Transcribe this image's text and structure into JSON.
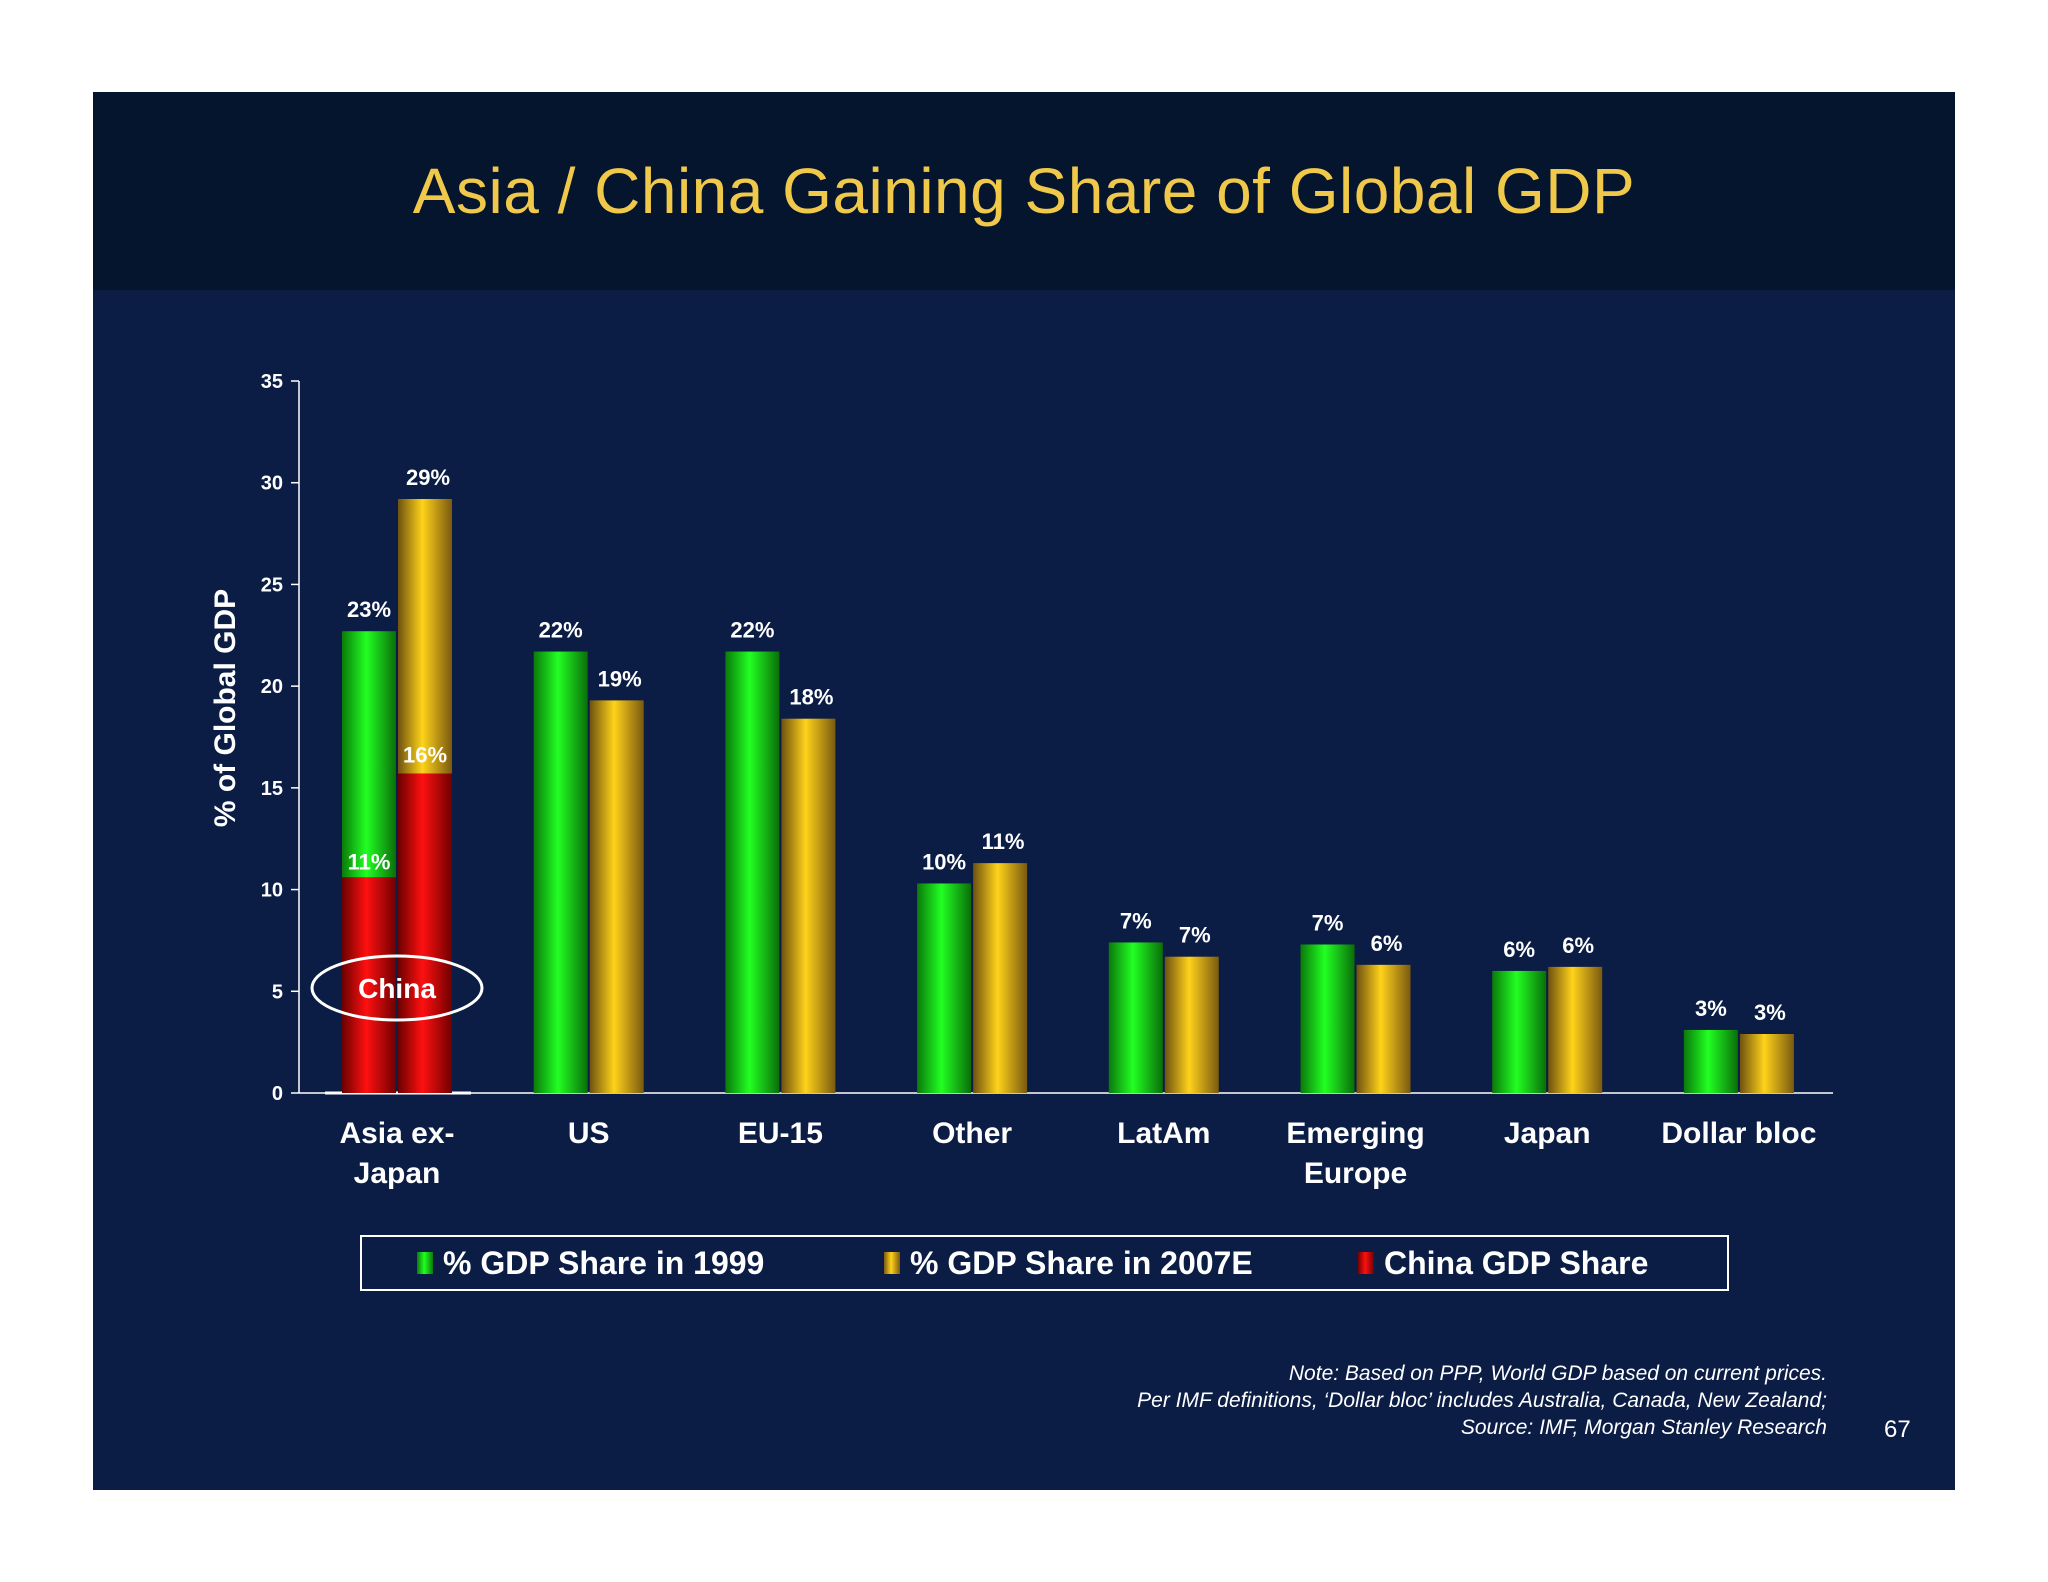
{
  "slide": {
    "title": "Asia / China Gaining Share of Global GDP",
    "page_number": "67",
    "notes": [
      "Note: Based on PPP, World GDP based on current prices.",
      "Per IMF definitions, ‘Dollar bloc’ includes Australia, Canada, New Zealand;",
      "Source: IMF, Morgan Stanley Research"
    ]
  },
  "colors": {
    "background": "#0b1d45",
    "title_band": "#06152e",
    "title_text": "#f0c94a",
    "series_1999": "#22ff22",
    "series_2007": "#ffd21a",
    "series_china": "#ff1010"
  },
  "legend": {
    "items": [
      {
        "label": "% GDP Share in 1999",
        "icon": "green-bar-swatch"
      },
      {
        "label": "% GDP Share in 2007E",
        "icon": "gold-bar-swatch"
      },
      {
        "label": "China GDP Share",
        "icon": "red-bar-swatch"
      }
    ]
  },
  "chart_data": {
    "type": "bar",
    "title": "Asia / China Gaining Share of Global GDP",
    "ylabel": "% of Global GDP",
    "xlabel": "",
    "ylim": [
      0,
      35
    ],
    "yticks": [
      0,
      5,
      10,
      15,
      20,
      25,
      30,
      35
    ],
    "categories": [
      [
        "Asia ex-",
        "Japan"
      ],
      [
        "US"
      ],
      [
        "EU-15"
      ],
      [
        "Other"
      ],
      [
        "LatAm"
      ],
      [
        "Emerging",
        "Europe"
      ],
      [
        "Japan"
      ],
      [
        "Dollar bloc"
      ]
    ],
    "series": [
      {
        "name": "% GDP Share in 1999",
        "values": [
          22.7,
          21.7,
          21.7,
          10.3,
          7.4,
          7.3,
          6.0,
          3.1
        ],
        "labels": [
          "23%",
          "22%",
          "22%",
          "10%",
          "7%",
          "7%",
          "6%",
          "3%"
        ]
      },
      {
        "name": "% GDP Share in 2007E",
        "values": [
          29.2,
          19.3,
          18.4,
          11.3,
          6.7,
          6.3,
          6.2,
          2.9
        ],
        "labels": [
          "29%",
          "19%",
          "18%",
          "11%",
          "7%",
          "6%",
          "6%",
          "3%"
        ]
      }
    ],
    "china_share": {
      "name": "China GDP Share",
      "category": "Asia ex-Japan",
      "values": [
        10.6,
        15.7
      ],
      "labels": [
        "11%",
        "16%"
      ],
      "annotation": "China"
    }
  }
}
